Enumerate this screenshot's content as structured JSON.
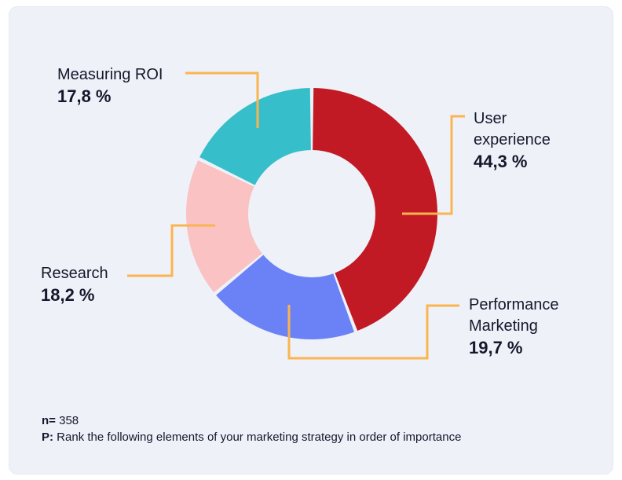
{
  "chart_data": {
    "type": "pie",
    "donut": true,
    "start": "top",
    "direction": "clockwise",
    "slices": [
      {
        "label": "User experience",
        "value": 44.3,
        "value_text": "44,3 %",
        "color": "#c21a24"
      },
      {
        "label": "Performance Marketing",
        "value": 19.7,
        "value_text": "19,7 %",
        "color": "#6b82f6"
      },
      {
        "label": "Research",
        "value": 18.2,
        "value_text": "18,2 %",
        "color": "#fac2c2"
      },
      {
        "label": "Measuring ROI",
        "value": 17.8,
        "value_text": "17,8 %",
        "color": "#36bfca"
      }
    ],
    "leader_color": "#fbb44f"
  },
  "footer": {
    "n_label": "n=",
    "n_value": "358",
    "question_label": "P:",
    "question_text": "Rank the following elements of your marketing strategy in order of importance"
  },
  "colors": {
    "background": "#eef2f8",
    "text": "#15172b"
  }
}
